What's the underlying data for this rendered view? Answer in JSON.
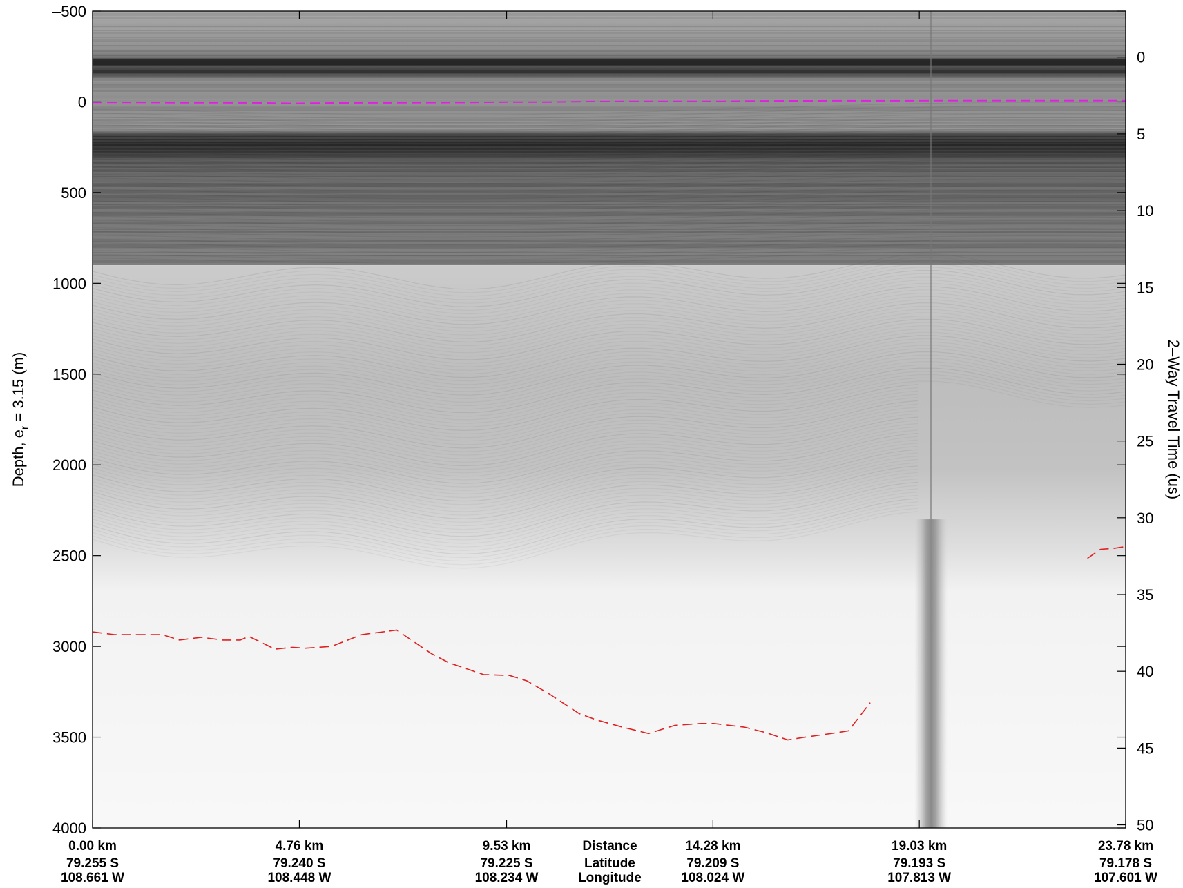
{
  "chart_data": {
    "type": "heatmap",
    "title": "",
    "ylabel_left": {
      "main": "Depth, e",
      "sub": "r",
      "rest": " = 3.15 (m)"
    },
    "ylabel_right": "2–Way Travel Time (us)",
    "y_left": {
      "range": [
        -500,
        4000
      ],
      "ticks": [
        -500,
        0,
        500,
        1000,
        1500,
        2000,
        2500,
        3000,
        3500,
        4000
      ],
      "tick_labels": [
        "–500",
        "0",
        "500",
        "1000",
        "1500",
        "2000",
        "2500",
        "3000",
        "3500",
        "4000"
      ]
    },
    "y_right": {
      "range": [
        -3.0,
        50.2
      ],
      "ticks": [
        0,
        5,
        10,
        15,
        20,
        25,
        30,
        35,
        40,
        45,
        50
      ],
      "tick_labels": [
        "0",
        "5",
        "10",
        "15",
        "20",
        "25",
        "30",
        "35",
        "40",
        "45",
        "50"
      ]
    },
    "x": {
      "range": [
        0,
        23.78
      ],
      "ticks": [
        0,
        4.76,
        9.53,
        14.28,
        19.03,
        23.78
      ]
    },
    "x_tick_labels": [
      {
        "distance": "0.00 km",
        "latitude": "79.255 S",
        "longitude": "108.661 W"
      },
      {
        "distance": "4.76 km",
        "latitude": "79.240 S",
        "longitude": "108.448 W"
      },
      {
        "distance": "9.53 km",
        "latitude": "79.225 S",
        "longitude": "108.234 W"
      },
      {
        "distance": "14.28 km",
        "latitude": "79.209 S",
        "longitude": "108.024 W"
      },
      {
        "distance": "19.03 km",
        "latitude": "79.193 S",
        "longitude": "107.813 W"
      },
      {
        "distance": "23.78 km",
        "latitude": "79.178 S",
        "longitude": "107.601 W"
      }
    ],
    "x_row_labels": [
      "Distance",
      "Latitude",
      "Longitude"
    ],
    "surface_pick": {
      "color": "#e020e0",
      "x": [
        0,
        1.0,
        2.0,
        3.0,
        4.0,
        4.6,
        5.5,
        7.0,
        8.5,
        9.5,
        10.5,
        11.5,
        13.0,
        14.5,
        15.5,
        17.0,
        18.5,
        20.0,
        21.5,
        23.78
      ],
      "depth": [
        3,
        3,
        5,
        5,
        6,
        8,
        6,
        5,
        4,
        1,
        1,
        -2,
        -3,
        -3,
        -5,
        -6,
        -6,
        -7,
        -7,
        -7
      ]
    },
    "bed_pick": {
      "color": "#e02020",
      "x": [
        0,
        0.5,
        1.0,
        1.6,
        2.0,
        2.5,
        3.0,
        3.4,
        3.6,
        4.2,
        4.6,
        4.9,
        5.5,
        6.2,
        7.0,
        7.8,
        8.2,
        9.0,
        9.6,
        10.0,
        10.5,
        11.2,
        11.6,
        12.2,
        12.8,
        13.4,
        14.0,
        14.3,
        15.0,
        15.5,
        16.0,
        16.4,
        17.0,
        17.4,
        17.9
      ],
      "depth": [
        2920,
        2935,
        2935,
        2935,
        2965,
        2950,
        2965,
        2965,
        2945,
        3015,
        3005,
        3010,
        3000,
        2935,
        2910,
        3040,
        3090,
        3155,
        3160,
        3190,
        3260,
        3370,
        3405,
        3445,
        3480,
        3435,
        3425,
        3425,
        3445,
        3475,
        3515,
        3500,
        3480,
        3465,
        3310
      ]
    },
    "bed_pick_right": {
      "color": "#e02020",
      "x": [
        22.9,
        23.2,
        23.5,
        23.78
      ],
      "depth": [
        2515,
        2465,
        2460,
        2450
      ]
    },
    "image": {
      "colormap": "gray",
      "gain_boundary_depth": 900,
      "airgap_top_depth": -220,
      "noise_column_x": 19.3,
      "noise_column_depth": [
        2300,
        4000
      ]
    },
    "grid": false,
    "legend": "none"
  }
}
